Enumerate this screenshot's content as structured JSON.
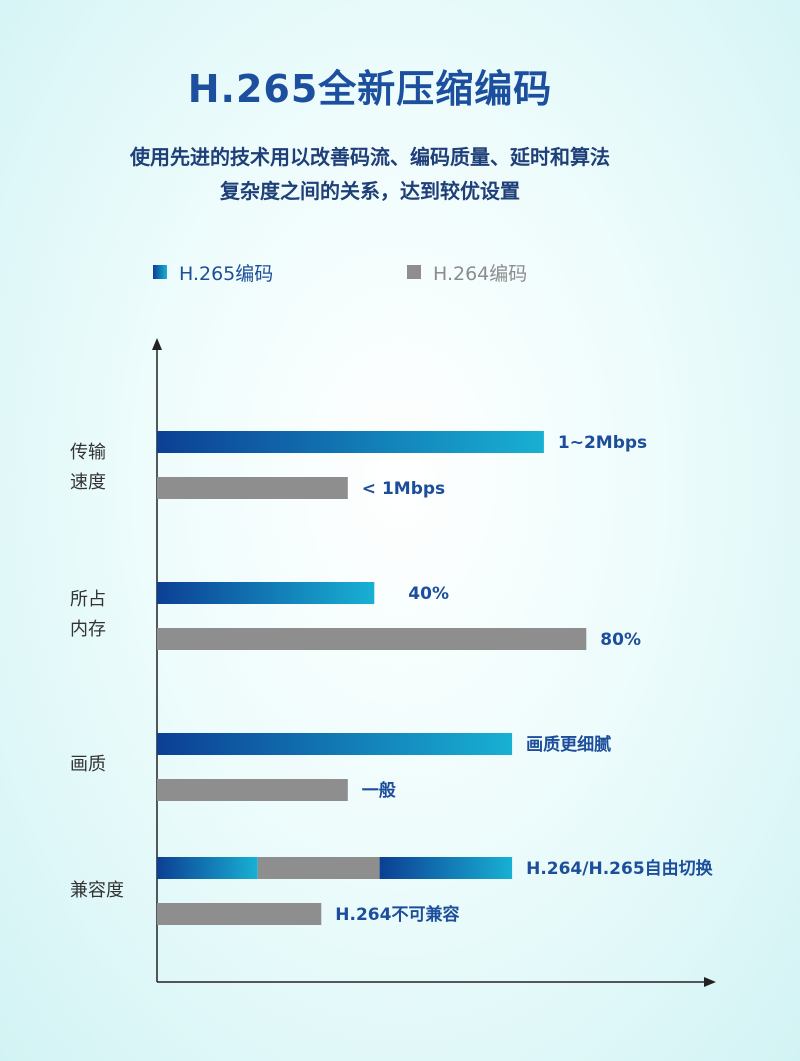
{
  "page": {
    "title": "H.265全新压缩编码",
    "subtitle_line1": "使用先进的技术用以改善码流、编码质量、延时和算法",
    "subtitle_line2": "复杂度之间的关系，达到较优设置"
  },
  "legend": {
    "h265_label": "H.265编码",
    "h264_label": "H.264编码"
  },
  "colors": {
    "h265_start": "#0c3f94",
    "h265_end": "#18b0d3",
    "h264": "#8e8e8e",
    "value_text": "#1d4e9b",
    "axis": "#222222"
  },
  "chart_data": {
    "type": "bar",
    "orientation": "horizontal",
    "legend_position": "top",
    "grid": false,
    "categories": [
      {
        "label_lines": [
          "传输",
          "速度"
        ],
        "bars": [
          {
            "series": "H.265编码",
            "value": 0.73,
            "label": "1~2Mbps"
          },
          {
            "series": "H.264编码",
            "value": 0.36,
            "label": "< 1Mbps"
          }
        ]
      },
      {
        "label_lines": [
          "所占",
          "内存"
        ],
        "bars": [
          {
            "series": "H.265编码",
            "value": 0.41,
            "label": "40%"
          },
          {
            "series": "H.264编码",
            "value": 0.81,
            "label": "80%"
          }
        ]
      },
      {
        "label_lines": [
          "画质"
        ],
        "bars": [
          {
            "series": "H.265编码",
            "value": 0.67,
            "label": "画质更细腻"
          },
          {
            "series": "H.264编码",
            "value": 0.36,
            "label": "一般"
          }
        ]
      },
      {
        "label_lines": [
          "兼容度"
        ],
        "bars": [
          {
            "series": "H.265编码",
            "value": 0.67,
            "label": "H.264/H.265自由切换",
            "segments": [
              {
                "series": "H.265编码",
                "value": 0.19
              },
              {
                "series": "H.264编码",
                "value": 0.23
              },
              {
                "series": "H.265编码",
                "value": 0.25
              }
            ]
          },
          {
            "series": "H.264编码",
            "value": 0.31,
            "label": "H.264不可兼容"
          }
        ]
      }
    ]
  }
}
